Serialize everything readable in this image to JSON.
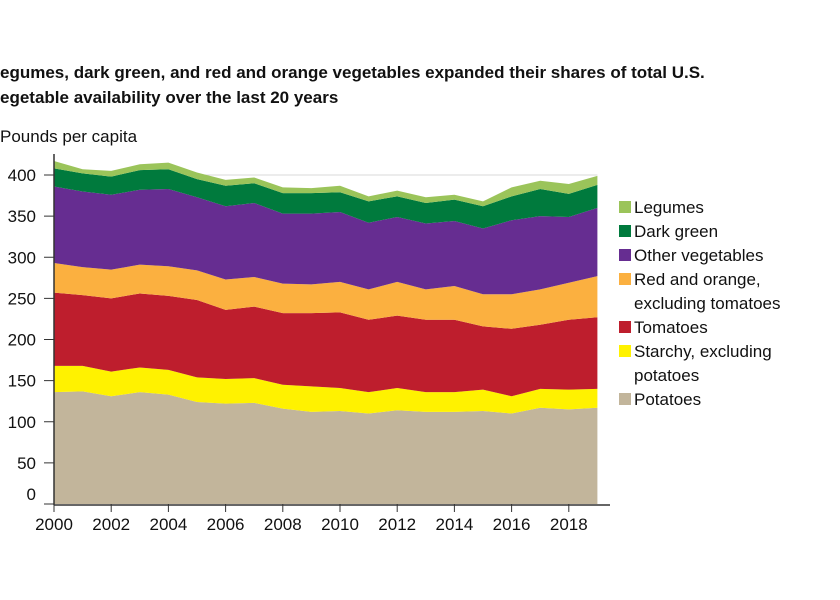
{
  "chart_data": {
    "type": "area",
    "stacked": true,
    "title_lines": [
      "egumes, dark green, and red and orange vegetables expanded their shares of total U.S.",
      "egetable availability over the last 20 years"
    ],
    "ylabel": "Pounds per capita",
    "xlabel": "",
    "ylim": [
      0,
      400
    ],
    "yticks": [
      0,
      50,
      100,
      150,
      200,
      250,
      300,
      350,
      400
    ],
    "xticks": [
      2000,
      2002,
      2004,
      2006,
      2008,
      2010,
      2012,
      2014,
      2016,
      2018
    ],
    "x": [
      2000,
      2001,
      2002,
      2003,
      2004,
      2005,
      2006,
      2007,
      2008,
      2009,
      2010,
      2011,
      2012,
      2013,
      2014,
      2015,
      2016,
      2017,
      2018,
      2019
    ],
    "grid": "400 line only",
    "legend_placement": "right",
    "series": [
      {
        "name": "Potatoes",
        "color": "#c2b59b",
        "values": [
          136,
          137,
          131,
          136,
          133,
          124,
          122,
          123,
          116,
          112,
          113,
          110,
          114,
          112,
          112,
          113,
          110,
          117,
          115,
          117
        ]
      },
      {
        "name": "Starchy, excluding potatoes",
        "color": "#fff200",
        "values": [
          32,
          31,
          30,
          30,
          30,
          30,
          30,
          30,
          29,
          31,
          28,
          26,
          27,
          24,
          24,
          26,
          21,
          23,
          24,
          23
        ]
      },
      {
        "name": "Tomatoes",
        "color": "#be1e2d",
        "values": [
          89,
          86,
          89,
          90,
          90,
          94,
          84,
          87,
          87,
          89,
          92,
          88,
          88,
          88,
          88,
          77,
          82,
          78,
          85,
          87
        ]
      },
      {
        "name": "Red and orange, excluding tomatoes",
        "color": "#fbb040",
        "values": [
          36,
          34,
          35,
          35,
          36,
          36,
          37,
          36,
          36,
          35,
          37,
          37,
          41,
          37,
          41,
          39,
          42,
          43,
          45,
          50
        ]
      },
      {
        "name": "Other vegetables",
        "color": "#662d91",
        "values": [
          93,
          92,
          91,
          91,
          94,
          89,
          89,
          90,
          85,
          86,
          85,
          81,
          79,
          80,
          79,
          80,
          90,
          89,
          80,
          83
        ]
      },
      {
        "name": "Dark green",
        "color": "#007a3d",
        "values": [
          22,
          22,
          22,
          24,
          24,
          22,
          25,
          24,
          25,
          25,
          24,
          26,
          25,
          25,
          26,
          27,
          29,
          33,
          28,
          28
        ]
      },
      {
        "name": "Legumes",
        "color": "#9bc45a",
        "values": [
          9,
          5,
          7,
          7,
          8,
          8,
          7,
          7,
          7,
          6,
          8,
          6,
          7,
          7,
          6,
          6,
          11,
          10,
          12,
          11
        ]
      }
    ],
    "legend": [
      {
        "lines": [
          "Legumes"
        ],
        "color": "#9bc45a"
      },
      {
        "lines": [
          "Dark green"
        ],
        "color": "#007a3d"
      },
      {
        "lines": [
          "Other vegetables"
        ],
        "color": "#662d91"
      },
      {
        "lines": [
          "Red and orange,",
          "excluding tomatoes"
        ],
        "color": "#fbb040"
      },
      {
        "lines": [
          "Tomatoes"
        ],
        "color": "#be1e2d"
      },
      {
        "lines": [
          "Starchy, excluding",
          "potatoes"
        ],
        "color": "#fff200"
      },
      {
        "lines": [
          "Potatoes"
        ],
        "color": "#c2b59b"
      }
    ]
  }
}
